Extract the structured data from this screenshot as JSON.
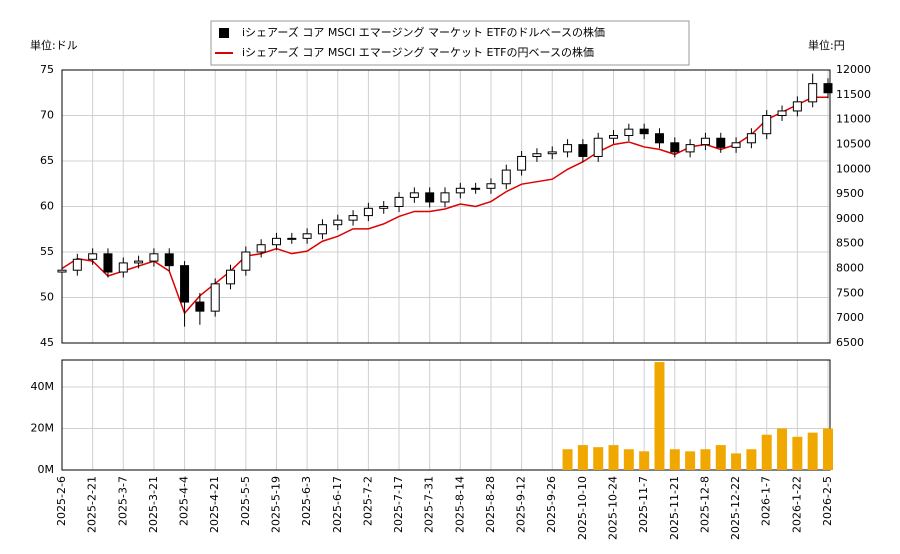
{
  "chart_data": {
    "type": "candlestick",
    "legend": [
      "iシェアーズ コア MSCI エマージング マーケット ETFのドルベースの株価",
      "iシェアーズ コア MSCI エマージング マーケット ETFの円ベースの株価"
    ],
    "y_label": "単位:ドル",
    "y2_label": "単位:円",
    "categories": [
      "2025-2-6",
      null,
      "2025-2-21",
      null,
      "2025-3-7",
      null,
      "2025-3-21",
      null,
      "2025-4-4",
      null,
      "2025-4-21",
      null,
      "2025-5-5",
      null,
      "2025-5-19",
      null,
      "2025-6-3",
      null,
      "2025-6-17",
      null,
      "2025-7-2",
      null,
      "2025-7-17",
      null,
      "2025-7-31",
      null,
      "2025-8-14",
      null,
      "2025-8-28",
      null,
      "2025-9-12",
      null,
      "2025-9-26",
      null,
      "2025-10-10",
      null,
      "2025-10-24",
      null,
      "2025-11-7",
      null,
      "2025-11-21",
      null,
      "2025-12-8",
      null,
      "2025-12-22",
      null,
      "2026-1-7",
      null,
      "2026-1-22",
      null,
      "2026-2-5"
    ],
    "open": [
      52.8,
      53.0,
      54.2,
      54.8,
      52.8,
      53.8,
      54.0,
      54.8,
      53.5,
      49.5,
      48.5,
      51.5,
      53.0,
      55.0,
      55.8,
      56.5,
      56.5,
      57.0,
      58.0,
      58.5,
      59.0,
      59.8,
      60.0,
      61.0,
      61.5,
      60.5,
      61.5,
      62.0,
      62.0,
      62.5,
      64.0,
      65.5,
      65.8,
      66.0,
      66.8,
      65.5,
      67.5,
      67.8,
      68.5,
      68.0,
      67.0,
      66.0,
      66.8,
      67.5,
      66.5,
      67.0,
      68.0,
      70.0,
      70.5,
      71.5,
      73.5
    ],
    "high": [
      53.6,
      54.8,
      55.4,
      55.4,
      54.4,
      54.6,
      55.4,
      55.4,
      54.0,
      50.5,
      52.1,
      53.6,
      55.6,
      56.4,
      57.1,
      57.1,
      57.6,
      58.6,
      59.1,
      59.6,
      60.4,
      60.6,
      61.6,
      62.1,
      62.1,
      62.1,
      62.6,
      62.6,
      63.1,
      64.6,
      66.1,
      66.4,
      66.6,
      67.4,
      67.4,
      68.1,
      68.4,
      69.1,
      69.1,
      68.6,
      67.6,
      67.4,
      68.1,
      68.1,
      67.6,
      68.6,
      70.6,
      71.1,
      72.1,
      74.6,
      74.1
    ],
    "low": [
      52.2,
      52.4,
      53.6,
      52.2,
      52.2,
      53.2,
      53.4,
      52.9,
      46.8,
      47.0,
      47.9,
      50.9,
      52.4,
      54.4,
      55.2,
      55.9,
      55.9,
      56.4,
      57.4,
      57.9,
      58.4,
      59.2,
      59.4,
      60.4,
      59.9,
      59.9,
      60.9,
      61.4,
      61.4,
      61.9,
      63.4,
      64.9,
      65.2,
      65.4,
      64.9,
      64.9,
      66.9,
      67.2,
      67.4,
      66.4,
      65.4,
      65.4,
      66.2,
      65.9,
      65.9,
      66.4,
      67.4,
      69.4,
      69.9,
      70.9,
      71.9
    ],
    "close": [
      53.0,
      54.2,
      54.8,
      52.8,
      53.8,
      54.0,
      54.8,
      53.5,
      49.5,
      48.5,
      51.5,
      53.0,
      55.0,
      55.8,
      56.5,
      56.5,
      57.0,
      58.0,
      58.5,
      59.0,
      59.8,
      60.0,
      61.0,
      61.5,
      60.5,
      61.5,
      62.0,
      62.0,
      62.5,
      64.0,
      65.5,
      65.8,
      66.0,
      66.8,
      65.5,
      67.5,
      67.8,
      68.5,
      68.0,
      67.0,
      66.0,
      66.8,
      67.5,
      66.5,
      67.0,
      68.0,
      70.0,
      70.5,
      71.5,
      73.5,
      72.5
    ],
    "yen": {
      "color": "#dd0000",
      "values": [
        8000,
        8200,
        8150,
        7850,
        7950,
        8050,
        8150,
        7950,
        7100,
        7450,
        7700,
        7950,
        8250,
        8300,
        8400,
        8300,
        8350,
        8550,
        8650,
        8800,
        8800,
        8900,
        9050,
        9150,
        9150,
        9200,
        9300,
        9250,
        9350,
        9550,
        9700,
        9750,
        9800,
        10000,
        10150,
        10350,
        10500,
        10550,
        10450,
        10400,
        10300,
        10450,
        10500,
        10400,
        10500,
        10700,
        11000,
        11150,
        11300,
        11450,
        11450
      ]
    },
    "volume": {
      "color": "#f0a800",
      "values": [
        null,
        null,
        null,
        null,
        null,
        null,
        null,
        null,
        null,
        null,
        null,
        null,
        null,
        null,
        null,
        null,
        null,
        null,
        null,
        null,
        null,
        null,
        null,
        null,
        null,
        null,
        null,
        null,
        null,
        null,
        null,
        null,
        null,
        10000000,
        12000000,
        11000000,
        12000000,
        10000000,
        9000000,
        52000000,
        10000000,
        9000000,
        10000000,
        12000000,
        8000000,
        10000000,
        17000000,
        20000000,
        16000000,
        18000000,
        20000000
      ]
    },
    "ylim": [
      45,
      75
    ],
    "yticks": [
      45,
      50,
      55,
      60,
      65,
      70,
      75
    ],
    "y2lim": [
      6500,
      12000
    ],
    "y2ticks": [
      6500,
      7000,
      7500,
      8000,
      8500,
      9000,
      9500,
      10000,
      10500,
      11000,
      11500,
      12000
    ],
    "vlim": [
      0,
      53000000
    ],
    "vticks": [
      {
        "value": 0,
        "label": "0M"
      },
      {
        "value": 20000000,
        "label": "20M"
      },
      {
        "value": 40000000,
        "label": "40M"
      }
    ],
    "grid": true
  }
}
